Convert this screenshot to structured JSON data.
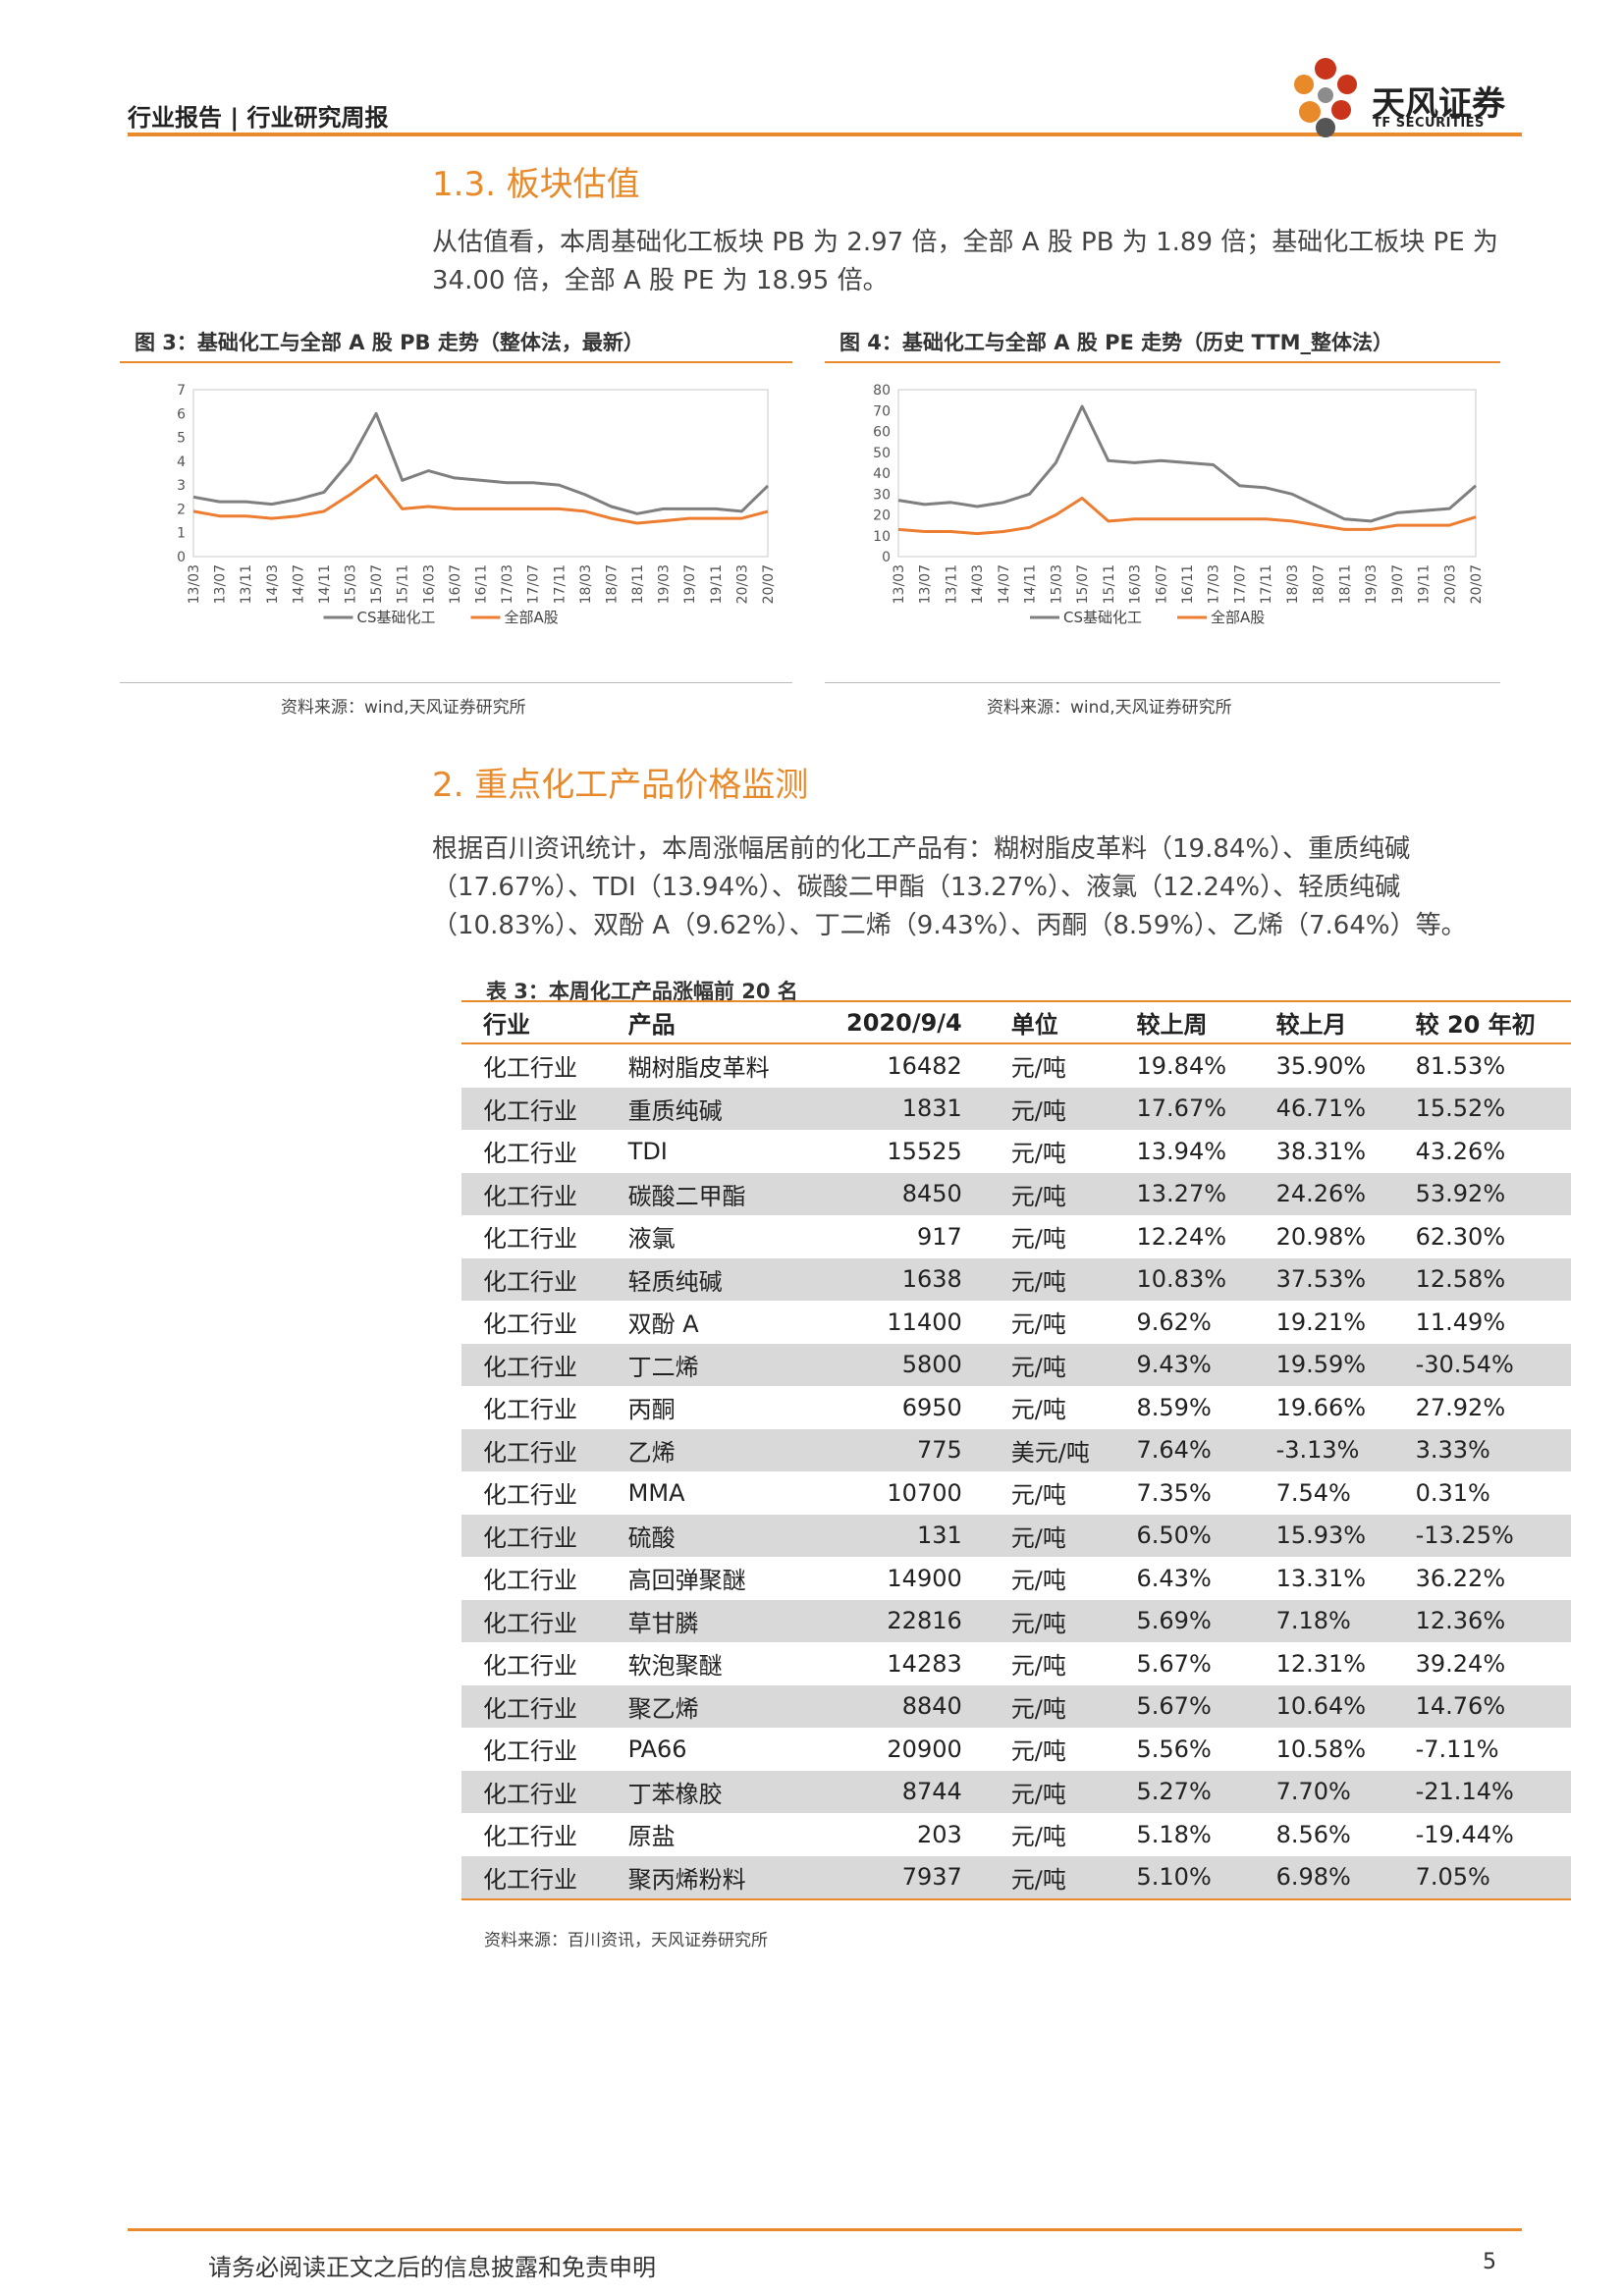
{
  "header": {
    "breadcrumb": "行业报告 | 行业研究周报"
  },
  "logo": {
    "name": "天风证券",
    "sub": "TF SECURITIES",
    "colors": [
      "#C8351A",
      "#E8892A",
      "#8C8C8C"
    ]
  },
  "section13": {
    "title": "1.3. 板块估值",
    "paragraph": "从估值看，本周基础化工板块 PB 为 2.97 倍，全部 A 股 PB 为 1.89 倍；基础化工板块 PE 为 34.00 倍，全部 A 股 PE 为 18.95 倍。"
  },
  "figure3": {
    "title": "图 3：基础化工与全部 A 股 PB 走势（整体法，最新）",
    "source": "资料来源：wind,天风证券研究所"
  },
  "figure4": {
    "title": "图 4：基础化工与全部 A 股 PE 走势（历史 TTM_整体法）",
    "source": "资料来源：wind,天风证券研究所"
  },
  "chart_data": [
    {
      "type": "line",
      "x_ticks": [
        "13/03",
        "13/07",
        "13/11",
        "14/03",
        "14/07",
        "14/11",
        "15/03",
        "15/07",
        "15/11",
        "16/03",
        "16/07",
        "16/11",
        "17/03",
        "17/07",
        "17/11",
        "18/03",
        "18/07",
        "18/11",
        "19/03",
        "19/07",
        "19/11",
        "20/03",
        "20/07"
      ],
      "y_ticks": [
        "0",
        "1",
        "2",
        "3",
        "4",
        "5",
        "6",
        "7"
      ],
      "ylim": [
        0,
        7
      ],
      "series": [
        {
          "name": "CS基础化工",
          "color": "#7F7F7F",
          "values": [
            2.5,
            2.3,
            2.3,
            2.2,
            2.4,
            2.7,
            4.0,
            6.0,
            3.2,
            3.6,
            3.3,
            3.2,
            3.1,
            3.1,
            3.0,
            2.6,
            2.1,
            1.8,
            2.0,
            2.0,
            2.0,
            1.9,
            2.97
          ]
        },
        {
          "name": "全部A股",
          "color": "#ED7D31",
          "values": [
            1.9,
            1.7,
            1.7,
            1.6,
            1.7,
            1.9,
            2.6,
            3.4,
            2.0,
            2.1,
            2.0,
            2.0,
            2.0,
            2.0,
            2.0,
            1.9,
            1.6,
            1.4,
            1.5,
            1.6,
            1.6,
            1.6,
            1.89
          ]
        }
      ]
    },
    {
      "type": "line",
      "x_ticks": [
        "13/03",
        "13/07",
        "13/11",
        "14/03",
        "14/07",
        "14/11",
        "15/03",
        "15/07",
        "15/11",
        "16/03",
        "16/07",
        "16/11",
        "17/03",
        "17/07",
        "17/11",
        "18/03",
        "18/07",
        "18/11",
        "19/03",
        "19/07",
        "19/11",
        "20/03",
        "20/07"
      ],
      "y_ticks": [
        "0",
        "10",
        "20",
        "30",
        "40",
        "50",
        "60",
        "70",
        "80"
      ],
      "ylim": [
        0,
        80
      ],
      "series": [
        {
          "name": "CS基础化工",
          "color": "#7F7F7F",
          "values": [
            27,
            25,
            26,
            24,
            26,
            30,
            45,
            72,
            46,
            45,
            46,
            45,
            44,
            34,
            33,
            30,
            24,
            18,
            17,
            21,
            22,
            23,
            34.0
          ]
        },
        {
          "name": "全部A股",
          "color": "#ED7D31",
          "values": [
            13,
            12,
            12,
            11,
            12,
            14,
            20,
            28,
            17,
            18,
            18,
            18,
            18,
            18,
            18,
            17,
            15,
            13,
            13,
            15,
            15,
            15,
            18.95
          ]
        }
      ]
    }
  ],
  "section2": {
    "title": "2. 重点化工产品价格监测",
    "paragraph": "根据百川资讯统计，本周涨幅居前的化工产品有：糊树脂皮革料（19.84%）、重质纯碱（17.67%）、TDI（13.94%）、碳酸二甲酯（13.27%）、液氯（12.24%）、轻质纯碱（10.83%）、双酚 A（9.62%）、丁二烯（9.43%）、丙酮（8.59%）、乙烯（7.64%）等。"
  },
  "table3": {
    "title": "表 3：本周化工产品涨幅前 20 名",
    "headers": [
      "行业",
      "产品",
      "2020/9/4",
      "单位",
      "较上周",
      "较上月",
      "较 20 年初"
    ],
    "rows": [
      [
        "化工行业",
        "糊树脂皮革料",
        "16482",
        "元/吨",
        "19.84%",
        "35.90%",
        "81.53%"
      ],
      [
        "化工行业",
        "重质纯碱",
        "1831",
        "元/吨",
        "17.67%",
        "46.71%",
        "15.52%"
      ],
      [
        "化工行业",
        "TDI",
        "15525",
        "元/吨",
        "13.94%",
        "38.31%",
        "43.26%"
      ],
      [
        "化工行业",
        "碳酸二甲酯",
        "8450",
        "元/吨",
        "13.27%",
        "24.26%",
        "53.92%"
      ],
      [
        "化工行业",
        "液氯",
        "917",
        "元/吨",
        "12.24%",
        "20.98%",
        "62.30%"
      ],
      [
        "化工行业",
        "轻质纯碱",
        "1638",
        "元/吨",
        "10.83%",
        "37.53%",
        "12.58%"
      ],
      [
        "化工行业",
        "双酚 A",
        "11400",
        "元/吨",
        "9.62%",
        "19.21%",
        "11.49%"
      ],
      [
        "化工行业",
        "丁二烯",
        "5800",
        "元/吨",
        "9.43%",
        "19.59%",
        "-30.54%"
      ],
      [
        "化工行业",
        "丙酮",
        "6950",
        "元/吨",
        "8.59%",
        "19.66%",
        "27.92%"
      ],
      [
        "化工行业",
        "乙烯",
        "775",
        "美元/吨",
        "7.64%",
        "-3.13%",
        "3.33%"
      ],
      [
        "化工行业",
        "MMA",
        "10700",
        "元/吨",
        "7.35%",
        "7.54%",
        "0.31%"
      ],
      [
        "化工行业",
        "硫酸",
        "131",
        "元/吨",
        "6.50%",
        "15.93%",
        "-13.25%"
      ],
      [
        "化工行业",
        "高回弹聚醚",
        "14900",
        "元/吨",
        "6.43%",
        "13.31%",
        "36.22%"
      ],
      [
        "化工行业",
        "草甘膦",
        "22816",
        "元/吨",
        "5.69%",
        "7.18%",
        "12.36%"
      ],
      [
        "化工行业",
        "软泡聚醚",
        "14283",
        "元/吨",
        "5.67%",
        "12.31%",
        "39.24%"
      ],
      [
        "化工行业",
        "聚乙烯",
        "8840",
        "元/吨",
        "5.67%",
        "10.64%",
        "14.76%"
      ],
      [
        "化工行业",
        "PA66",
        "20900",
        "元/吨",
        "5.56%",
        "10.58%",
        "-7.11%"
      ],
      [
        "化工行业",
        "丁苯橡胶",
        "8744",
        "元/吨",
        "5.27%",
        "7.70%",
        "-21.14%"
      ],
      [
        "化工行业",
        "原盐",
        "203",
        "元/吨",
        "5.18%",
        "8.56%",
        "-19.44%"
      ],
      [
        "化工行业",
        "聚丙烯粉料",
        "7937",
        "元/吨",
        "5.10%",
        "6.98%",
        "7.05%"
      ]
    ],
    "source": "资料来源：百川资讯，天风证券研究所"
  },
  "footer": {
    "disclaimer": "请务必阅读正文之后的信息披露和免责申明",
    "page": "5"
  }
}
